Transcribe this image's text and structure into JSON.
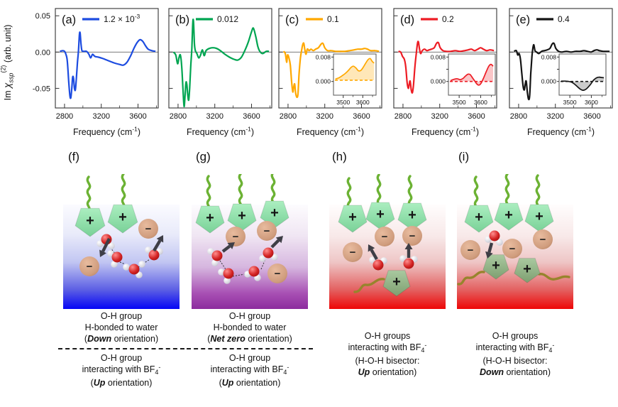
{
  "figure": {
    "y_axis": {
      "prefix": "Im ",
      "symbol": "χ",
      "sub": "ssp",
      "sup": "(2)",
      "rest": " (arb. unit)"
    },
    "x_axis": {
      "pre": "Frequency (cm",
      "sup": "-1",
      "post": ")"
    },
    "axes": {
      "xlim": [
        2700,
        3820
      ],
      "ylim": [
        -0.077,
        0.06
      ],
      "x_ticks": [
        2800,
        3200,
        3600
      ],
      "x_minor": [
        3000,
        3400,
        3800
      ],
      "y_ticks": [
        {
          "v": 0.05,
          "label": "0.05"
        },
        {
          "v": 0,
          "label": "0.00"
        },
        {
          "v": -0.05,
          "label": "-0.05"
        }
      ]
    }
  },
  "ions": {
    "plus": "+",
    "minus": "−"
  },
  "chart_data": [
    {
      "id": "a",
      "type": "line",
      "label": "(a)",
      "legend": {
        "pre": "1.2 × 10",
        "sup": "-3"
      },
      "color": "#1d4ce0",
      "series": [
        [
          2750,
          0.001
        ],
        [
          2780,
          0.002
        ],
        [
          2800,
          0.001
        ],
        [
          2815,
          -0.003
        ],
        [
          2830,
          -0.012
        ],
        [
          2845,
          -0.04
        ],
        [
          2858,
          -0.06
        ],
        [
          2868,
          -0.063
        ],
        [
          2878,
          -0.052
        ],
        [
          2888,
          -0.035
        ],
        [
          2898,
          -0.036
        ],
        [
          2908,
          -0.05
        ],
        [
          2918,
          -0.052
        ],
        [
          2928,
          -0.038
        ],
        [
          2940,
          -0.015
        ],
        [
          2952,
          0.002
        ],
        [
          2962,
          0.024
        ],
        [
          2970,
          0.026
        ],
        [
          2980,
          0.01
        ],
        [
          2990,
          0.002
        ],
        [
          3010,
          0.001
        ],
        [
          3040,
          0.001
        ],
        [
          3065,
          -0.003
        ],
        [
          3085,
          -0.008
        ],
        [
          3105,
          -0.003
        ],
        [
          3130,
          -0.006
        ],
        [
          3170,
          -0.007
        ],
        [
          3220,
          -0.009
        ],
        [
          3280,
          -0.012
        ],
        [
          3340,
          -0.015
        ],
        [
          3400,
          -0.017
        ],
        [
          3440,
          -0.018
        ],
        [
          3480,
          -0.014
        ],
        [
          3520,
          -0.005
        ],
        [
          3555,
          0.005
        ],
        [
          3590,
          0.013
        ],
        [
          3620,
          0.017
        ],
        [
          3650,
          0.015
        ],
        [
          3680,
          0.009
        ],
        [
          3710,
          0.004
        ],
        [
          3750,
          0.002
        ],
        [
          3790,
          0.001
        ]
      ]
    },
    {
      "id": "b",
      "type": "line",
      "label": "(b)",
      "legend": {
        "pre": "0.012"
      },
      "color": "#00a551",
      "series": [
        [
          2750,
          0
        ],
        [
          2775,
          -0.004
        ],
        [
          2795,
          -0.016
        ],
        [
          2810,
          -0.008
        ],
        [
          2825,
          -0.004
        ],
        [
          2840,
          -0.02
        ],
        [
          2855,
          -0.055
        ],
        [
          2866,
          -0.075
        ],
        [
          2876,
          -0.06
        ],
        [
          2886,
          -0.042
        ],
        [
          2896,
          -0.045
        ],
        [
          2906,
          -0.06
        ],
        [
          2916,
          -0.066
        ],
        [
          2926,
          -0.05
        ],
        [
          2938,
          -0.02
        ],
        [
          2950,
          0.005
        ],
        [
          2960,
          0.04
        ],
        [
          2968,
          0.042
        ],
        [
          2978,
          0.012
        ],
        [
          2988,
          0.002
        ],
        [
          3005,
          -0.002
        ],
        [
          3025,
          -0.008
        ],
        [
          3045,
          -0.004
        ],
        [
          3065,
          0.003
        ],
        [
          3085,
          -0.005
        ],
        [
          3105,
          0.002
        ],
        [
          3140,
          0.005
        ],
        [
          3180,
          0.006
        ],
        [
          3220,
          0.005
        ],
        [
          3260,
          0.002
        ],
        [
          3310,
          -0.003
        ],
        [
          3360,
          -0.007
        ],
        [
          3410,
          -0.01
        ],
        [
          3450,
          -0.011
        ],
        [
          3490,
          -0.007
        ],
        [
          3530,
          0.003
        ],
        [
          3565,
          0.014
        ],
        [
          3600,
          0.028
        ],
        [
          3620,
          0.033
        ],
        [
          3645,
          0.022
        ],
        [
          3668,
          0.008
        ],
        [
          3690,
          0.001
        ],
        [
          3720,
          -0.002
        ],
        [
          3760,
          0.001
        ],
        [
          3790,
          0.001
        ]
      ]
    },
    {
      "id": "c",
      "type": "line",
      "label": "(c)",
      "legend": {
        "pre": "0.1"
      },
      "color": "#ffa800",
      "series": [
        [
          2750,
          0.001
        ],
        [
          2770,
          -0.002
        ],
        [
          2785,
          -0.014
        ],
        [
          2795,
          -0.004
        ],
        [
          2810,
          -0.008
        ],
        [
          2825,
          -0.018
        ],
        [
          2840,
          -0.042
        ],
        [
          2852,
          -0.055
        ],
        [
          2862,
          -0.048
        ],
        [
          2872,
          -0.044
        ],
        [
          2882,
          -0.056
        ],
        [
          2895,
          -0.062
        ],
        [
          2908,
          -0.058
        ],
        [
          2920,
          -0.03
        ],
        [
          2935,
          -0.008
        ],
        [
          2950,
          0.004
        ],
        [
          2962,
          0.011
        ],
        [
          2972,
          0.012
        ],
        [
          2982,
          0.004
        ],
        [
          2995,
          -0.003
        ],
        [
          3010,
          0.004
        ],
        [
          3030,
          0.002
        ],
        [
          3050,
          0.004
        ],
        [
          3075,
          0.002
        ],
        [
          3100,
          0.004
        ],
        [
          3130,
          0.006
        ],
        [
          3160,
          0.011
        ],
        [
          3180,
          0.012
        ],
        [
          3200,
          0.006
        ],
        [
          3230,
          0.002
        ],
        [
          3270,
          0.002
        ],
        [
          3320,
          0.001
        ],
        [
          3370,
          0.001
        ],
        [
          3420,
          0.001
        ],
        [
          3470,
          0.002
        ],
        [
          3520,
          0.003
        ],
        [
          3560,
          0.004
        ],
        [
          3600,
          0.004
        ],
        [
          3635,
          0.005
        ],
        [
          3665,
          0.004
        ],
        [
          3700,
          0.002
        ],
        [
          3750,
          0.002
        ],
        [
          3790,
          0.001
        ]
      ],
      "inset": {
        "xlim": [
          3450,
          3668
        ],
        "ylim": [
          -0.0045,
          0.009
        ],
        "dash_y": 0.0004,
        "line": "#ffa800",
        "fill": "rgba(255,168,0,0.28)",
        "x_ticks": [
          {
            "v": 3500,
            "label": "3500"
          },
          {
            "v": 3600,
            "label": "3600"
          }
        ],
        "x_minor": [
          3550,
          3650
        ],
        "y_ticks": [
          {
            "v": 0.008,
            "label": "0.008"
          },
          {
            "v": 0.004,
            "label": ""
          },
          {
            "v": 0,
            "label": "0.000"
          }
        ],
        "series": [
          [
            3460,
            0.0008
          ],
          [
            3478,
            0.0012
          ],
          [
            3495,
            0.0019
          ],
          [
            3510,
            0.0026
          ],
          [
            3525,
            0.0035
          ],
          [
            3540,
            0.0046
          ],
          [
            3552,
            0.005
          ],
          [
            3565,
            0.0044
          ],
          [
            3578,
            0.0035
          ],
          [
            3590,
            0.0036
          ],
          [
            3602,
            0.0046
          ],
          [
            3615,
            0.006
          ],
          [
            3628,
            0.0072
          ],
          [
            3638,
            0.0075
          ],
          [
            3648,
            0.0066
          ],
          [
            3658,
            0.006
          ]
        ]
      }
    },
    {
      "id": "d",
      "type": "line",
      "label": "(d)",
      "legend": {
        "pre": "0.2"
      },
      "color": "#ed1c24",
      "series": [
        [
          2750,
          0.001
        ],
        [
          2775,
          0
        ],
        [
          2795,
          -0.006
        ],
        [
          2815,
          -0.01
        ],
        [
          2830,
          -0.02
        ],
        [
          2845,
          -0.042
        ],
        [
          2858,
          -0.05
        ],
        [
          2868,
          -0.044
        ],
        [
          2878,
          -0.04
        ],
        [
          2890,
          -0.052
        ],
        [
          2902,
          -0.056
        ],
        [
          2915,
          -0.045
        ],
        [
          2930,
          -0.02
        ],
        [
          2945,
          -0.002
        ],
        [
          2958,
          0.012
        ],
        [
          2968,
          0.014
        ],
        [
          2980,
          0.004
        ],
        [
          2992,
          -0.002
        ],
        [
          3010,
          0.002
        ],
        [
          3035,
          0.004
        ],
        [
          3060,
          0.002
        ],
        [
          3085,
          0.003
        ],
        [
          3110,
          0.004
        ],
        [
          3140,
          0.006
        ],
        [
          3165,
          0.012
        ],
        [
          3185,
          0.013
        ],
        [
          3205,
          0.006
        ],
        [
          3235,
          0.002
        ],
        [
          3270,
          0.001
        ],
        [
          3320,
          0.001
        ],
        [
          3370,
          0.002
        ],
        [
          3420,
          0.001
        ],
        [
          3470,
          0.002
        ],
        [
          3510,
          0.003
        ],
        [
          3545,
          0.004
        ],
        [
          3580,
          0.002
        ],
        [
          3615,
          0.004
        ],
        [
          3645,
          0.006
        ],
        [
          3675,
          0.004
        ],
        [
          3710,
          0.002
        ],
        [
          3750,
          0.003
        ],
        [
          3790,
          0.002
        ]
      ],
      "inset": {
        "xlim": [
          3450,
          3668
        ],
        "ylim": [
          -0.0045,
          0.009
        ],
        "dash_y": 0,
        "line": "#ed1c24",
        "fill": "rgba(237,28,36,0.25)",
        "x_ticks": [
          {
            "v": 3500,
            "label": "3500"
          },
          {
            "v": 3600,
            "label": "3600"
          }
        ],
        "x_minor": [
          3550,
          3650
        ],
        "y_ticks": [
          {
            "v": 0.008,
            "label": "0.008"
          },
          {
            "v": 0.004,
            "label": ""
          },
          {
            "v": 0,
            "label": "0.000"
          }
        ],
        "series": [
          [
            3460,
            0.0003
          ],
          [
            3475,
            0.0007
          ],
          [
            3490,
            0.0009
          ],
          [
            3505,
            0.0006
          ],
          [
            3518,
            0.001
          ],
          [
            3530,
            0.0018
          ],
          [
            3542,
            0.0024
          ],
          [
            3552,
            0.0022
          ],
          [
            3562,
            0.0012
          ],
          [
            3572,
            0.0002
          ],
          [
            3582,
            -0.0008
          ],
          [
            3592,
            -0.0012
          ],
          [
            3602,
            -0.0006
          ],
          [
            3614,
            0.0012
          ],
          [
            3626,
            0.0032
          ],
          [
            3638,
            0.005
          ],
          [
            3648,
            0.0056
          ],
          [
            3658,
            0.005
          ]
        ]
      }
    },
    {
      "id": "e",
      "type": "line",
      "label": "(e)",
      "legend": {
        "pre": "0.4"
      },
      "color": "#141414",
      "series": [
        [
          2750,
          0.001
        ],
        [
          2775,
          0.002
        ],
        [
          2790,
          -0.004
        ],
        [
          2805,
          -0.002
        ],
        [
          2820,
          -0.01
        ],
        [
          2835,
          -0.03
        ],
        [
          2850,
          -0.048
        ],
        [
          2862,
          -0.052
        ],
        [
          2872,
          -0.044
        ],
        [
          2882,
          -0.04
        ],
        [
          2895,
          -0.055
        ],
        [
          2908,
          -0.065
        ],
        [
          2920,
          -0.06
        ],
        [
          2932,
          -0.03
        ],
        [
          2945,
          -0.006
        ],
        [
          2956,
          0.006
        ],
        [
          2966,
          0.01
        ],
        [
          2978,
          0.002
        ],
        [
          2995,
          0
        ],
        [
          3020,
          -0.002
        ],
        [
          3050,
          0.001
        ],
        [
          3080,
          0.002
        ],
        [
          3110,
          0.003
        ],
        [
          3140,
          0.005
        ],
        [
          3165,
          0.011
        ],
        [
          3185,
          0.012
        ],
        [
          3205,
          0.005
        ],
        [
          3235,
          0.001
        ],
        [
          3270,
          0
        ],
        [
          3320,
          0.001
        ],
        [
          3370,
          0
        ],
        [
          3420,
          0.001
        ],
        [
          3470,
          0.001
        ],
        [
          3510,
          0.002
        ],
        [
          3550,
          0.001
        ],
        [
          3590,
          0
        ],
        [
          3620,
          0.002
        ],
        [
          3650,
          0.003
        ],
        [
          3680,
          0.002
        ],
        [
          3720,
          0.001
        ],
        [
          3760,
          0.001
        ],
        [
          3790,
          0.001
        ]
      ],
      "inset": {
        "xlim": [
          3450,
          3668
        ],
        "ylim": [
          -0.0045,
          0.009
        ],
        "dash_y": 0,
        "line": "#141414",
        "fill": "rgba(140,140,140,0.45)",
        "x_ticks": [
          {
            "v": 3500,
            "label": "3500"
          },
          {
            "v": 3600,
            "label": "3600"
          }
        ],
        "x_minor": [
          3550,
          3650
        ],
        "y_ticks": [
          {
            "v": 0.008,
            "label": "0.008"
          },
          {
            "v": 0.004,
            "label": ""
          },
          {
            "v": 0,
            "label": "0.000"
          }
        ],
        "series": [
          [
            3460,
            0.0001
          ],
          [
            3478,
            0.0001
          ],
          [
            3495,
            0
          ],
          [
            3510,
            -0.0003
          ],
          [
            3524,
            -0.001
          ],
          [
            3538,
            -0.0019
          ],
          [
            3550,
            -0.0026
          ],
          [
            3562,
            -0.0029
          ],
          [
            3574,
            -0.0026
          ],
          [
            3586,
            -0.0018
          ],
          [
            3598,
            -0.0008
          ],
          [
            3610,
            0.0004
          ],
          [
            3622,
            0.0011
          ],
          [
            3634,
            0.0014
          ],
          [
            3648,
            0.0013
          ],
          [
            3658,
            0.0012
          ]
        ]
      }
    }
  ],
  "diagrams": [
    {
      "label": "(f)",
      "cap1": {
        "l1": "O-H group",
        "l2": "H-bonded to water",
        "pre": "(",
        "em": "Down",
        "post": " orientation)"
      },
      "cap2": {
        "l1": "O-H group",
        "l2": "interacting with BF",
        "sub": "4",
        "sup": "-",
        "pre": "(",
        "em": "Up",
        "post": " orientation)"
      }
    },
    {
      "label": "(g)",
      "cap1": {
        "l1": "O-H group",
        "l2": "H-bonded to water",
        "pre": "(",
        "em": "Net zero",
        "post": "  orientation)"
      },
      "cap2": {
        "l1": "O-H group",
        "l2": "interacting with BF",
        "sub": "4",
        "sup": "-",
        "pre": "(",
        "em": "Up",
        "post": " orientation)"
      }
    },
    {
      "label": "(h)",
      "cap": {
        "l1": "O-H groups",
        "l2": "interacting with BF",
        "sub": "4",
        "sup": "-",
        "l3": "(H-O-H bisector:",
        "em": "Up",
        "post": " orientation)"
      }
    },
    {
      "label": "(i)",
      "cap": {
        "l1": "O-H groups",
        "l2": "interacting with BF",
        "sub": "4",
        "sup": "-",
        "l3": "(H-O-H bisector:",
        "em": "Down",
        "post": " orientation)"
      }
    }
  ]
}
